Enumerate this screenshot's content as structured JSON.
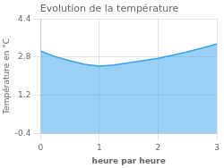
{
  "chart_data": {
    "type": "area",
    "title": "Evolution de la température",
    "xlabel": "heure par heure",
    "ylabel": "Température en °C",
    "x": [
      0,
      0.25,
      0.5,
      0.75,
      1.0,
      1.25,
      1.5,
      1.75,
      2.0,
      2.25,
      2.5,
      2.75,
      3.0
    ],
    "values": [
      3.05,
      2.82,
      2.65,
      2.5,
      2.42,
      2.47,
      2.56,
      2.66,
      2.75,
      2.88,
      3.02,
      3.18,
      3.35
    ],
    "xlim": [
      0,
      3
    ],
    "ylim": [
      -0.4,
      4.4
    ],
    "xticks": [
      0,
      1,
      2,
      3
    ],
    "yticks": [
      -0.4,
      1.2,
      2.8,
      4.4
    ],
    "grid": true
  }
}
